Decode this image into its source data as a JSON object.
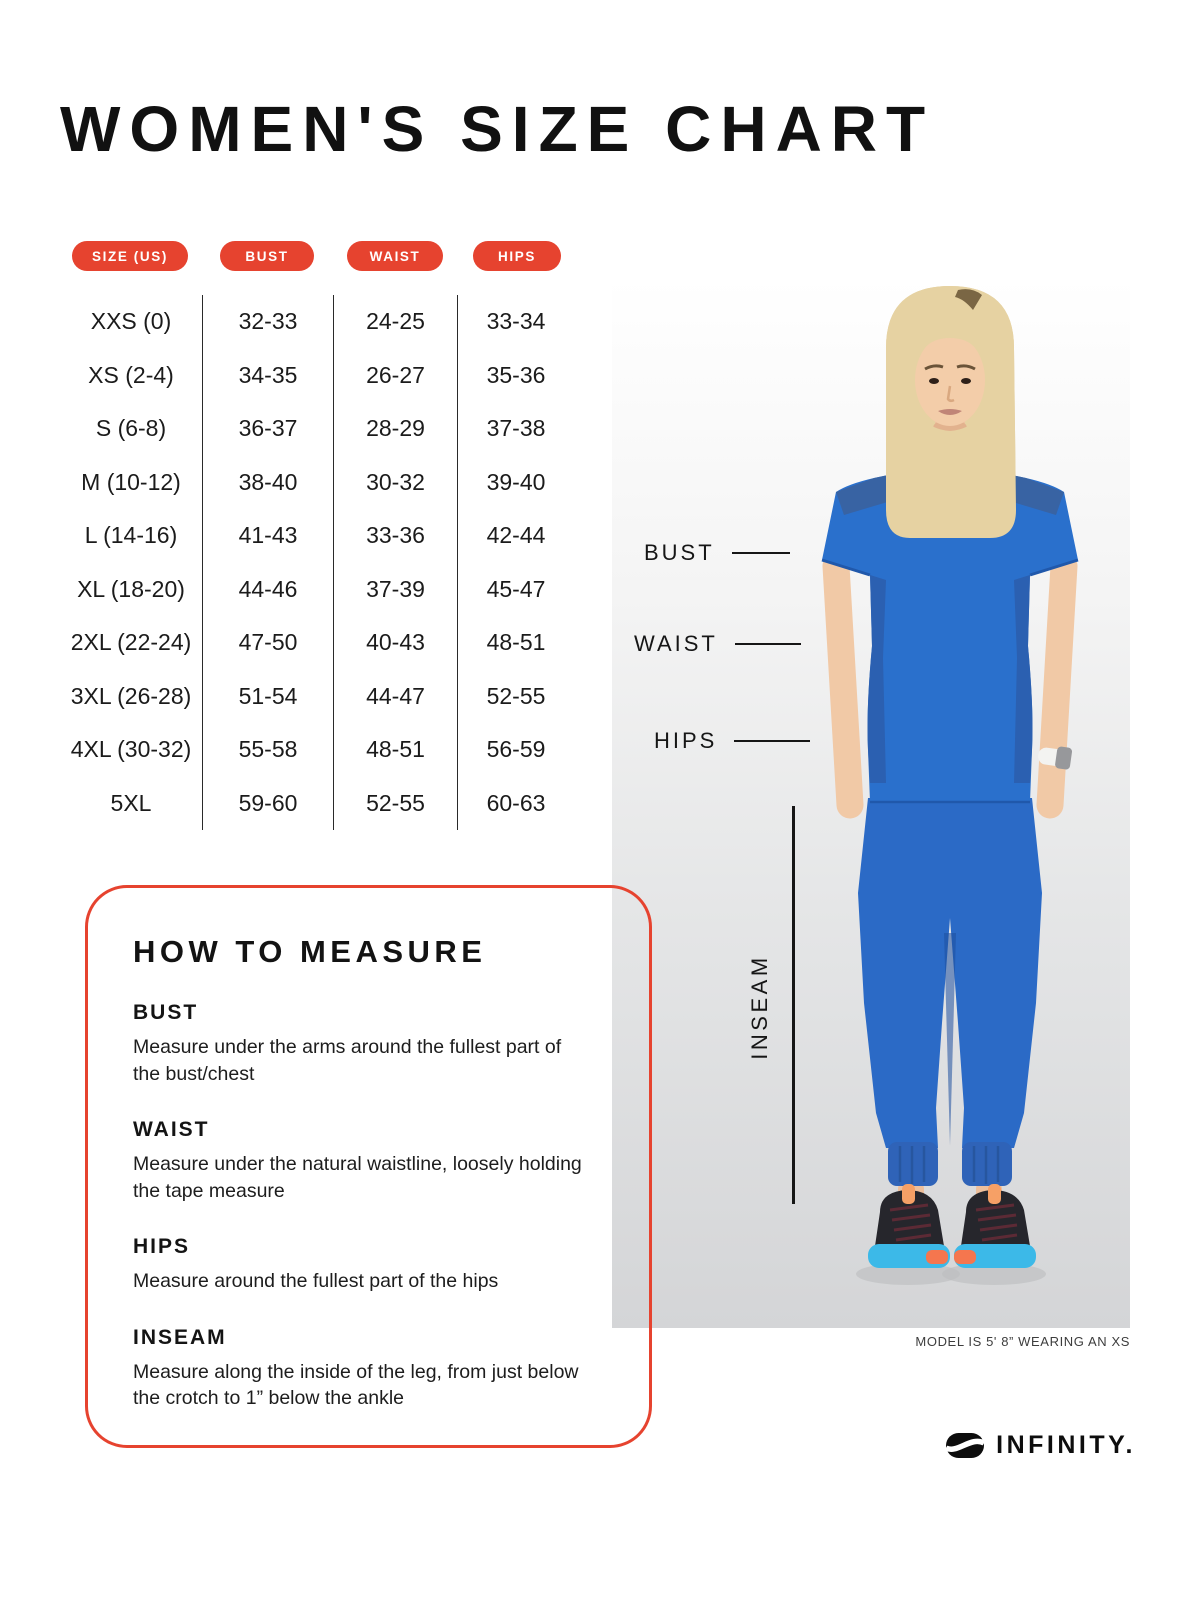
{
  "page": {
    "title": "WOMEN'S SIZE CHART"
  },
  "accent_color": "#e6432f",
  "scrub_color": "#2a70cc",
  "table": {
    "headers": [
      "SIZE (US)",
      "BUST",
      "WAIST",
      "HIPS"
    ],
    "rows": [
      [
        "XXS (0)",
        "32-33",
        "24-25",
        "33-34"
      ],
      [
        "XS (2-4)",
        "34-35",
        "26-27",
        "35-36"
      ],
      [
        "S (6-8)",
        "36-37",
        "28-29",
        "37-38"
      ],
      [
        "M (10-12)",
        "38-40",
        "30-32",
        "39-40"
      ],
      [
        "L (14-16)",
        "41-43",
        "33-36",
        "42-44"
      ],
      [
        "XL (18-20)",
        "44-46",
        "37-39",
        "45-47"
      ],
      [
        "2XL (22-24)",
        "47-50",
        "40-43",
        "48-51"
      ],
      [
        "3XL (26-28)",
        "51-54",
        "44-47",
        "52-55"
      ],
      [
        "4XL (30-32)",
        "55-58",
        "48-51",
        "56-59"
      ],
      [
        "5XL",
        "59-60",
        "52-55",
        "60-63"
      ]
    ]
  },
  "figure": {
    "annotations": {
      "bust": "BUST",
      "waist": "WAIST",
      "hips": "HIPS",
      "inseam": "INSEAM"
    },
    "caption": "MODEL IS 5' 8” WEARING AN XS"
  },
  "how_to_measure": {
    "title": "HOW TO MEASURE",
    "sections": [
      {
        "label": "BUST",
        "text": "Measure under the arms around the fullest part of the bust/chest"
      },
      {
        "label": "WAIST",
        "text": "Measure under the natural waistline, loosely holding the tape measure"
      },
      {
        "label": "HIPS",
        "text": "Measure around the fullest part of the hips"
      },
      {
        "label": "INSEAM",
        "text": "Measure along the inside of the leg, from just below the crotch to 1” below the ankle"
      }
    ]
  },
  "brand": {
    "name": "INFINITY."
  }
}
